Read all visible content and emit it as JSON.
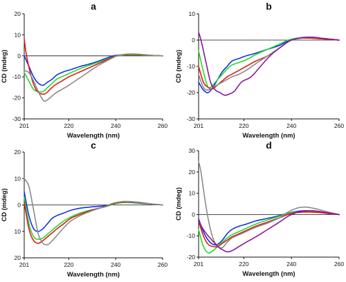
{
  "series_colors": {
    "blue": "#1030e8",
    "green": "#22dd22",
    "red": "#e01818",
    "gray": "#8a8a8a",
    "purple": "#8a169a"
  },
  "chart_data": [
    {
      "type": "line",
      "title": "a",
      "xlabel": "Wavelength (nm)",
      "ylabel": "CD (mdeg)",
      "xlim": [
        201,
        260
      ],
      "ylim": [
        -30,
        20
      ],
      "xticks": [
        201,
        220,
        240,
        260
      ],
      "xtick_labels": [
        "201",
        "220",
        "240",
        "260"
      ],
      "yticks": [
        20,
        10,
        0,
        -10,
        -20,
        -30
      ],
      "ytick_labels": [
        "20",
        "10",
        "0",
        "-10",
        "-20",
        "-30"
      ],
      "grid": false,
      "series": [
        {
          "color": "blue",
          "x": [
            201,
            203,
            205,
            207,
            209,
            211,
            213,
            215,
            218,
            221,
            225,
            230,
            235,
            238,
            240,
            243,
            246,
            249,
            252,
            255,
            258,
            260
          ],
          "y": [
            0,
            -5,
            -10,
            -13,
            -14,
            -12.5,
            -11,
            -9,
            -7.5,
            -6.5,
            -5,
            -3.5,
            -1.5,
            -0.3,
            0.2,
            0.5,
            0.6,
            0.5,
            0.4,
            0.2,
            0.1,
            0
          ]
        },
        {
          "color": "green",
          "x": [
            201,
            203,
            205,
            207,
            209,
            211,
            213,
            215,
            218,
            221,
            225,
            230,
            235,
            238,
            240,
            243,
            246,
            249,
            252,
            255,
            258,
            260
          ],
          "y": [
            -8,
            -12,
            -16,
            -17,
            -17,
            -15,
            -13,
            -11,
            -9.5,
            -8,
            -6,
            -4,
            -2,
            -0.8,
            -0.2,
            0.3,
            0.4,
            0.4,
            0.3,
            0.2,
            0.1,
            0
          ]
        },
        {
          "color": "red",
          "x": [
            201,
            202,
            204,
            206,
            208,
            210,
            212,
            214,
            217,
            220,
            224,
            228,
            232,
            236,
            239,
            241,
            244,
            247,
            250,
            253,
            256,
            260
          ],
          "y": [
            8,
            0,
            -10,
            -16,
            -18,
            -18,
            -16,
            -14,
            -12,
            -10,
            -8,
            -6,
            -4,
            -2,
            -0.5,
            0.2,
            0.6,
            0.7,
            0.6,
            0.4,
            0.2,
            0
          ]
        },
        {
          "color": "gray",
          "x": [
            201,
            203,
            205,
            207,
            209,
            210,
            212,
            214,
            217,
            220,
            224,
            228,
            232,
            236,
            239,
            241,
            244,
            247,
            250,
            253,
            256,
            260
          ],
          "y": [
            -7,
            -8,
            -12,
            -17,
            -21,
            -21.5,
            -20,
            -18,
            -16,
            -14,
            -11,
            -8,
            -5,
            -2.5,
            -0.8,
            0.2,
            0.8,
            0.9,
            0.8,
            0.5,
            0.2,
            0
          ]
        }
      ]
    },
    {
      "type": "line",
      "title": "b",
      "xlabel": "Wavelength (nm)",
      "ylabel": "CD (mdeg)",
      "xlim": [
        201,
        260
      ],
      "ylim": [
        -30,
        10
      ],
      "xticks": [
        201,
        220,
        240,
        260
      ],
      "xtick_labels": [
        "201",
        "220",
        "240",
        "260"
      ],
      "yticks": [
        10,
        0,
        -10,
        -20,
        -30
      ],
      "ytick_labels": [
        "10",
        "0",
        "-10",
        "-20",
        "-30"
      ],
      "grid": false,
      "series": [
        {
          "color": "blue",
          "x": [
            201,
            203,
            205,
            207,
            209,
            211,
            213,
            215,
            218,
            221,
            225,
            230,
            235,
            238,
            240,
            243,
            246,
            249,
            252,
            255,
            258,
            260
          ],
          "y": [
            -16,
            -19,
            -20,
            -18,
            -15,
            -12,
            -10,
            -8,
            -7,
            -6,
            -5,
            -3.5,
            -2,
            -0.5,
            0.2,
            0.6,
            0.8,
            0.7,
            0.6,
            0.4,
            0.2,
            0
          ]
        },
        {
          "color": "green",
          "x": [
            201,
            203,
            205,
            207,
            209,
            211,
            213,
            215,
            218,
            221,
            225,
            230,
            235,
            238,
            240,
            243,
            246,
            249,
            252,
            255,
            258,
            260
          ],
          "y": [
            -4,
            -12,
            -18,
            -17,
            -15,
            -13,
            -11,
            -9.5,
            -8.5,
            -7.5,
            -5.5,
            -3.5,
            -1.5,
            -0.2,
            0.4,
            0.8,
            1,
            0.9,
            0.7,
            0.4,
            0.2,
            0
          ]
        },
        {
          "color": "red",
          "x": [
            201,
            203,
            205,
            207,
            209,
            211,
            213,
            215,
            218,
            221,
            225,
            230,
            235,
            238,
            240,
            243,
            246,
            249,
            252,
            255,
            258,
            260
          ],
          "y": [
            -10,
            -16,
            -18,
            -18.5,
            -17,
            -15.5,
            -14,
            -13,
            -11.5,
            -10,
            -8,
            -6,
            -3,
            -1,
            0,
            0.6,
            0.8,
            0.7,
            0.5,
            0.3,
            0.1,
            0
          ]
        },
        {
          "color": "gray",
          "x": [
            201,
            203,
            205,
            207,
            209,
            211,
            213,
            215,
            218,
            221,
            225,
            230,
            235,
            238,
            240,
            243,
            246,
            249,
            252,
            255,
            258,
            260
          ],
          "y": [
            -13,
            -18,
            -19,
            -18,
            -17,
            -16,
            -15,
            -14,
            -13,
            -11.5,
            -9,
            -6,
            -3,
            -1,
            0,
            0.6,
            1,
            1,
            0.8,
            0.5,
            0.2,
            0
          ]
        },
        {
          "color": "purple",
          "x": [
            201,
            202,
            204,
            206,
            208,
            210,
            212,
            214,
            216,
            219,
            223,
            227,
            231,
            235,
            238,
            240,
            243,
            246,
            249,
            252,
            256,
            260
          ],
          "y": [
            3,
            0,
            -8,
            -16,
            -19,
            -20,
            -21,
            -20.5,
            -19.5,
            -16,
            -14,
            -10,
            -6,
            -3,
            -1,
            0,
            0.8,
            1.1,
            1.1,
            0.8,
            0.4,
            0
          ]
        }
      ]
    },
    {
      "type": "line",
      "title": "c",
      "xlabel": "Wavelength (nm)",
      "ylabel": "CD (mdeg)",
      "xlim": [
        201,
        260
      ],
      "ylim": [
        -20,
        20
      ],
      "xticks": [
        201,
        220,
        240,
        260
      ],
      "xtick_labels": [
        "201",
        "220",
        "240",
        "260"
      ],
      "yticks": [
        20,
        10,
        0,
        10,
        20
      ],
      "ytick_labels": [
        "20",
        "10",
        "0",
        "10",
        "20"
      ],
      "grid": false,
      "series": [
        {
          "color": "blue",
          "x": [
            201,
            203,
            205,
            207,
            209,
            211,
            213,
            215,
            218,
            221,
            225,
            229,
            233,
            236,
            238,
            240,
            243,
            246,
            249,
            252,
            256,
            260
          ],
          "y": [
            5,
            -4,
            -9,
            -10,
            -9,
            -7,
            -5,
            -4,
            -3,
            -2,
            -1.2,
            -0.8,
            -0.5,
            -0.3,
            0.2,
            0.6,
            0.9,
            0.9,
            0.7,
            0.5,
            0.3,
            0
          ]
        },
        {
          "color": "green",
          "x": [
            201,
            203,
            205,
            207,
            209,
            211,
            213,
            215,
            218,
            221,
            225,
            229,
            233,
            236,
            238,
            240,
            243,
            246,
            249,
            252,
            256,
            260
          ],
          "y": [
            3,
            -7,
            -12,
            -13,
            -12.5,
            -11,
            -9.5,
            -8,
            -6,
            -4.5,
            -3,
            -2,
            -1.2,
            -0.6,
            0,
            0.5,
            0.9,
            1,
            0.8,
            0.6,
            0.3,
            0
          ]
        },
        {
          "color": "red",
          "x": [
            201,
            203,
            205,
            207,
            209,
            211,
            213,
            215,
            218,
            221,
            225,
            229,
            233,
            236,
            238,
            240,
            243,
            246,
            249,
            252,
            256,
            260
          ],
          "y": [
            1,
            -9,
            -13.5,
            -14.5,
            -13.5,
            -12,
            -10.5,
            -9,
            -7,
            -5,
            -3.5,
            -2.2,
            -1.2,
            -0.5,
            0.2,
            0.7,
            1.1,
            1.2,
            1,
            0.7,
            0.3,
            0
          ]
        },
        {
          "color": "gray",
          "x": [
            201,
            203,
            205,
            207,
            209,
            211,
            213,
            215,
            218,
            221,
            225,
            229,
            233,
            236,
            238,
            240,
            243,
            246,
            249,
            252,
            256,
            260
          ],
          "y": [
            10,
            7,
            -2,
            -11,
            -14.5,
            -15,
            -13.5,
            -11.5,
            -8.5,
            -6,
            -4,
            -2.5,
            -1.3,
            -0.5,
            0.4,
            0.9,
            1.3,
            1.3,
            1.1,
            0.8,
            0.3,
            0
          ]
        }
      ]
    },
    {
      "type": "line",
      "title": "d",
      "xlabel": "Wavelength (nm)",
      "ylabel": "CD (mdeg)",
      "xlim": [
        201,
        260
      ],
      "ylim": [
        -20,
        30
      ],
      "xticks": [
        201,
        220,
        240,
        260
      ],
      "xtick_labels": [
        "201",
        "220",
        "240",
        "260"
      ],
      "yticks": [
        30,
        20,
        10,
        0,
        -10,
        -20
      ],
      "ytick_labels": [
        "30",
        "20",
        "10",
        "0",
        "-10",
        "-20"
      ],
      "grid": false,
      "series": [
        {
          "color": "blue",
          "x": [
            201,
            203,
            205,
            207,
            209,
            211,
            213,
            215,
            218,
            221,
            225,
            230,
            235,
            238,
            240,
            243,
            246,
            249,
            252,
            256,
            260
          ],
          "y": [
            -2,
            -8,
            -12,
            -14,
            -14,
            -12,
            -9,
            -7,
            -5.5,
            -4.5,
            -3,
            -1.8,
            -0.5,
            0.5,
            1,
            1.6,
            1.8,
            1.6,
            1.2,
            0.6,
            0
          ]
        },
        {
          "color": "green",
          "x": [
            201,
            203,
            205,
            207,
            209,
            211,
            213,
            215,
            218,
            221,
            225,
            230,
            235,
            238,
            240,
            243,
            246,
            249,
            252,
            256,
            260
          ],
          "y": [
            -7,
            -15,
            -18,
            -17,
            -15,
            -13,
            -11,
            -9.5,
            -8,
            -6.5,
            -4.5,
            -2.5,
            -0.8,
            0.3,
            0.8,
            1.2,
            1.4,
            1.3,
            1,
            0.5,
            0
          ]
        },
        {
          "color": "red",
          "x": [
            201,
            203,
            205,
            207,
            209,
            211,
            213,
            215,
            218,
            221,
            225,
            230,
            235,
            238,
            240,
            243,
            246,
            249,
            252,
            256,
            260
          ],
          "y": [
            -3,
            -10,
            -14,
            -15,
            -15,
            -13.5,
            -12,
            -10.5,
            -9,
            -7.5,
            -5.5,
            -3.5,
            -1.5,
            -0.2,
            0.5,
            1,
            1.2,
            1.1,
            0.9,
            0.4,
            0
          ]
        },
        {
          "color": "gray",
          "x": [
            201,
            202,
            203,
            205,
            207,
            209,
            211,
            213,
            215,
            218,
            221,
            225,
            230,
            235,
            238,
            240,
            243,
            246,
            249,
            252,
            256,
            260
          ],
          "y": [
            25,
            20,
            12,
            -2,
            -11,
            -15,
            -15.5,
            -13,
            -11,
            -9.5,
            -8,
            -6,
            -4,
            -1.5,
            0.8,
            2,
            3.2,
            3.5,
            3,
            2.2,
            1,
            0
          ]
        },
        {
          "color": "purple",
          "x": [
            201,
            203,
            205,
            207,
            209,
            211,
            213,
            215,
            218,
            221,
            225,
            230,
            235,
            238,
            240,
            243,
            246,
            249,
            252,
            256,
            260
          ],
          "y": [
            -3,
            -7,
            -10,
            -12.5,
            -15,
            -16.5,
            -17.5,
            -17,
            -15,
            -13,
            -10.5,
            -7,
            -3.5,
            -1.2,
            0,
            1.2,
            1.8,
            1.8,
            1.4,
            0.7,
            0
          ]
        }
      ]
    }
  ]
}
